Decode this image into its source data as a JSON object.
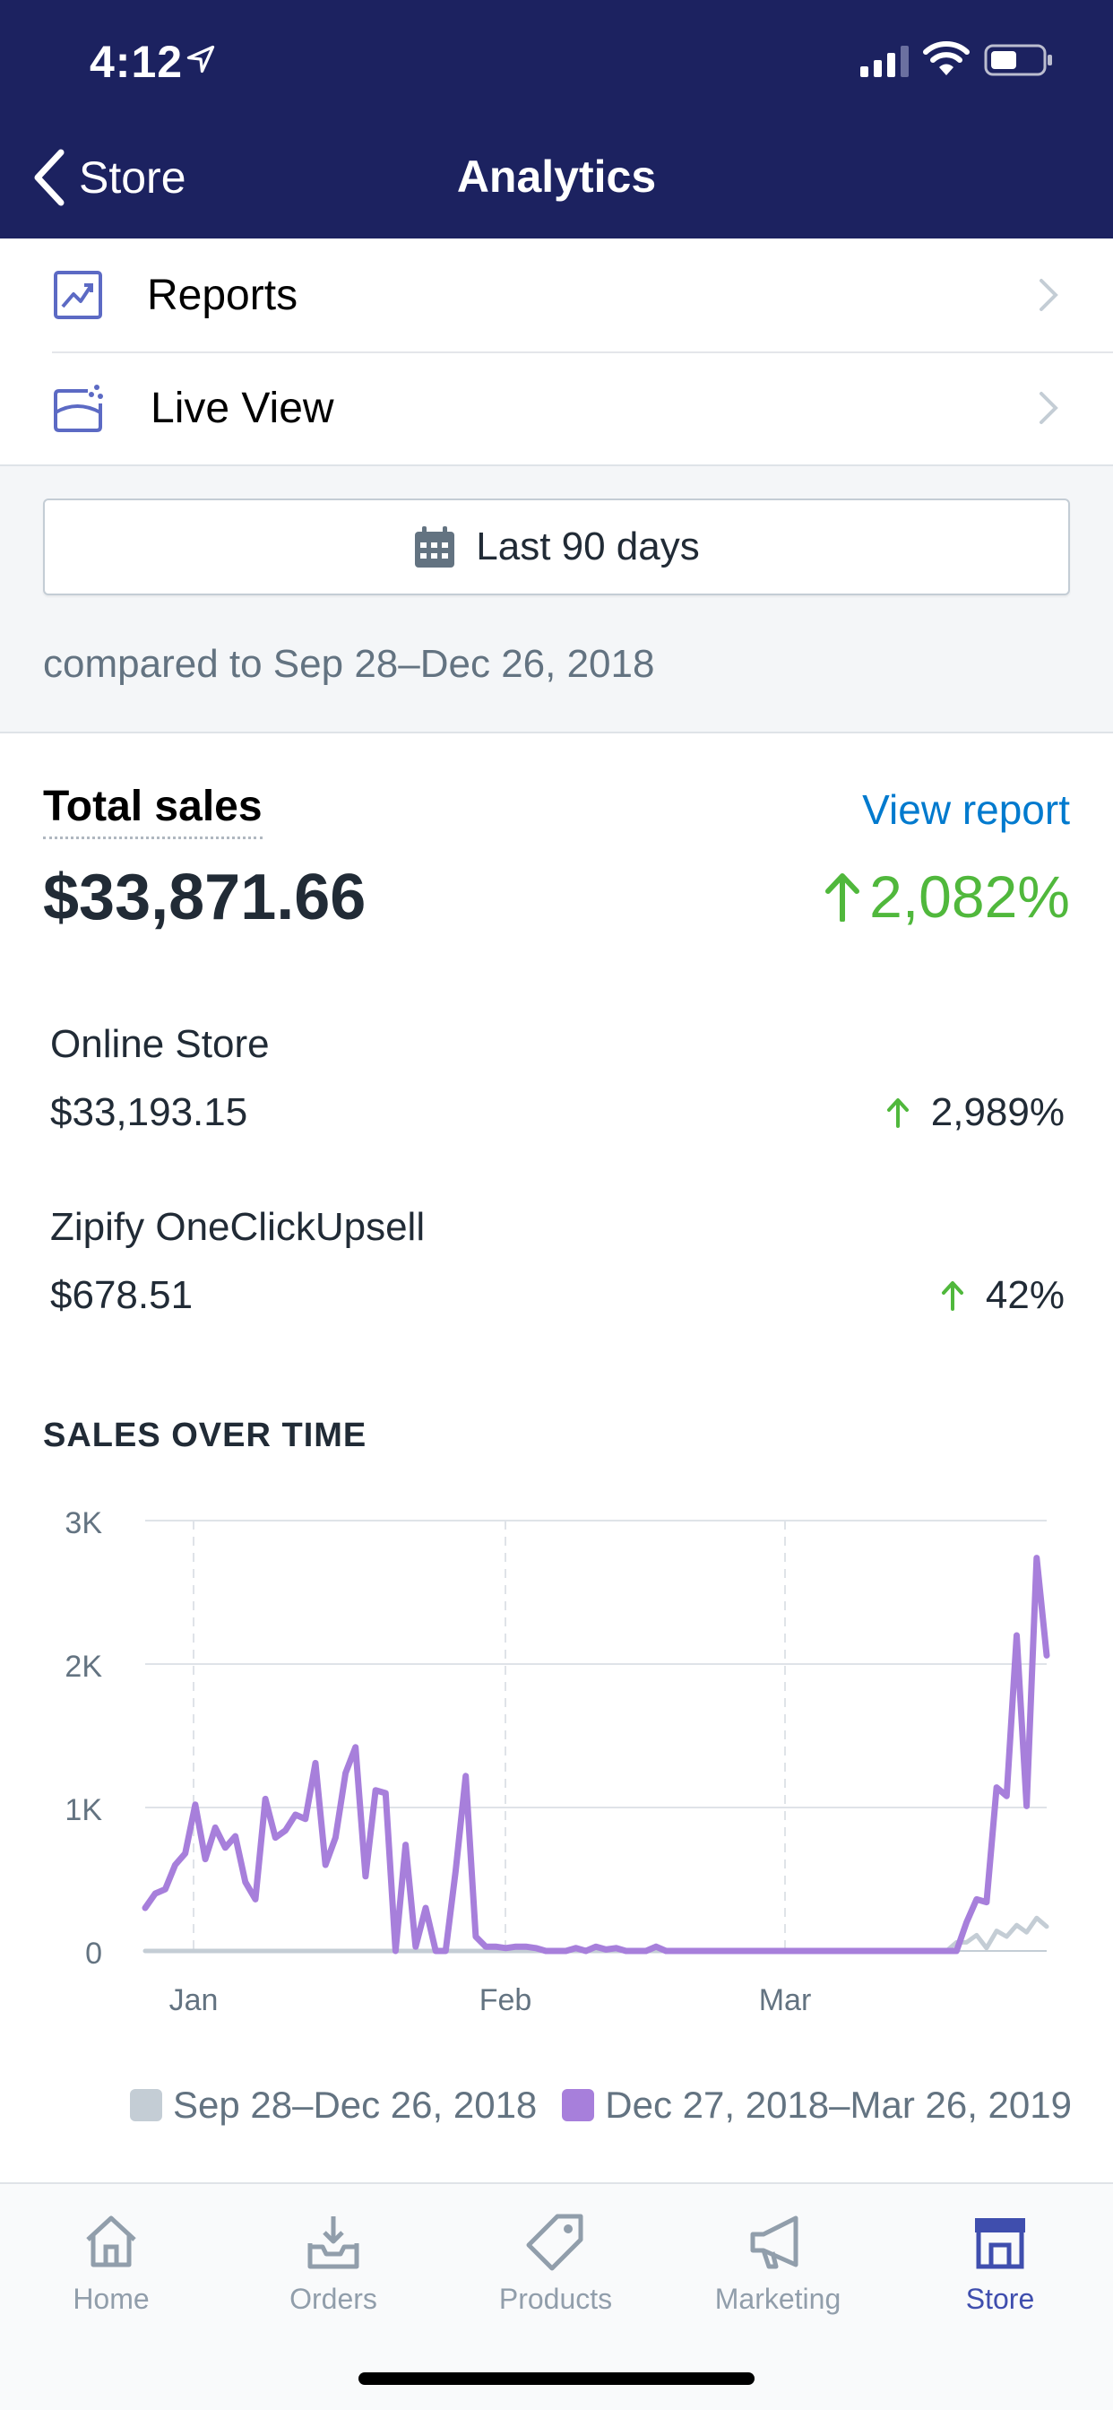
{
  "status_bar": {
    "time": "4:12"
  },
  "nav": {
    "back_label": "Store",
    "title": "Analytics"
  },
  "menu": [
    {
      "label": "Reports",
      "icon": "reports-icon"
    },
    {
      "label": "Live View",
      "icon": "live-view-icon"
    }
  ],
  "date_range": {
    "label": "Last 90 days",
    "compare": "compared to Sep 28–Dec 26, 2018"
  },
  "total_sales": {
    "label": "Total sales",
    "view_report": "View report",
    "value": "$33,871.66",
    "change": "2,082%"
  },
  "channels": [
    {
      "name": "Online Store",
      "value": "$33,193.15",
      "change": "2,989%"
    },
    {
      "name": "Zipify OneClickUpsell",
      "value": "$678.51",
      "change": "42%"
    }
  ],
  "section_title": "SALES OVER TIME",
  "colors": {
    "accent_green": "#50b83c",
    "link_blue": "#007ace",
    "nav_bg": "#1c2260",
    "current_series": "#a77fdb",
    "previous_series": "#c4cdd5",
    "tab_active": "#3f4eae"
  },
  "chart_data": {
    "type": "line",
    "y_ticks": [
      "3K",
      "2K",
      "1K",
      "0"
    ],
    "x_ticks": [
      "Jan",
      "Feb",
      "Mar"
    ],
    "ylim": [
      0,
      3000
    ],
    "grid": true,
    "legend_position": "bottom-right",
    "series": [
      {
        "name": "Sep 28–Dec 26, 2018",
        "color": "#c4cdd5",
        "values": [
          0,
          0,
          0,
          0,
          0,
          0,
          0,
          0,
          0,
          0,
          0,
          0,
          0,
          0,
          0,
          0,
          0,
          0,
          0,
          0,
          0,
          0,
          0,
          0,
          0,
          0,
          0,
          0,
          0,
          0,
          0,
          0,
          0,
          0,
          0,
          0,
          0,
          0,
          0,
          0,
          0,
          0,
          0,
          0,
          0,
          0,
          0,
          0,
          0,
          0,
          0,
          0,
          0,
          0,
          0,
          0,
          0,
          0,
          0,
          0,
          0,
          0,
          0,
          0,
          0,
          0,
          0,
          0,
          0,
          0,
          0,
          0,
          0,
          0,
          0,
          0,
          0,
          0,
          0,
          0,
          0,
          60,
          60,
          110,
          20,
          140,
          100,
          180,
          130,
          230,
          170
        ]
      },
      {
        "name": "Dec 27, 2018–Mar 26, 2019",
        "color": "#a77fdb",
        "values": [
          300,
          400,
          430,
          600,
          680,
          1020,
          640,
          860,
          720,
          800,
          480,
          360,
          1060,
          790,
          840,
          950,
          920,
          1310,
          600,
          790,
          1240,
          1420,
          520,
          1120,
          1100,
          0,
          740,
          30,
          300,
          0,
          0,
          560,
          1220,
          100,
          30,
          30,
          20,
          30,
          30,
          20,
          0,
          0,
          0,
          20,
          0,
          30,
          10,
          20,
          0,
          0,
          0,
          30,
          0,
          0,
          0,
          0,
          0,
          0,
          0,
          0,
          0,
          0,
          0,
          0,
          0,
          0,
          0,
          0,
          0,
          0,
          0,
          0,
          0,
          0,
          0,
          0,
          0,
          0,
          0,
          0,
          0,
          0,
          200,
          360,
          340,
          1140,
          1080,
          2200,
          1010,
          2740,
          2060
        ]
      }
    ]
  },
  "tabs": [
    {
      "label": "Home",
      "icon": "home-icon"
    },
    {
      "label": "Orders",
      "icon": "orders-icon"
    },
    {
      "label": "Products",
      "icon": "products-icon"
    },
    {
      "label": "Marketing",
      "icon": "marketing-icon"
    },
    {
      "label": "Store",
      "icon": "store-icon"
    }
  ]
}
